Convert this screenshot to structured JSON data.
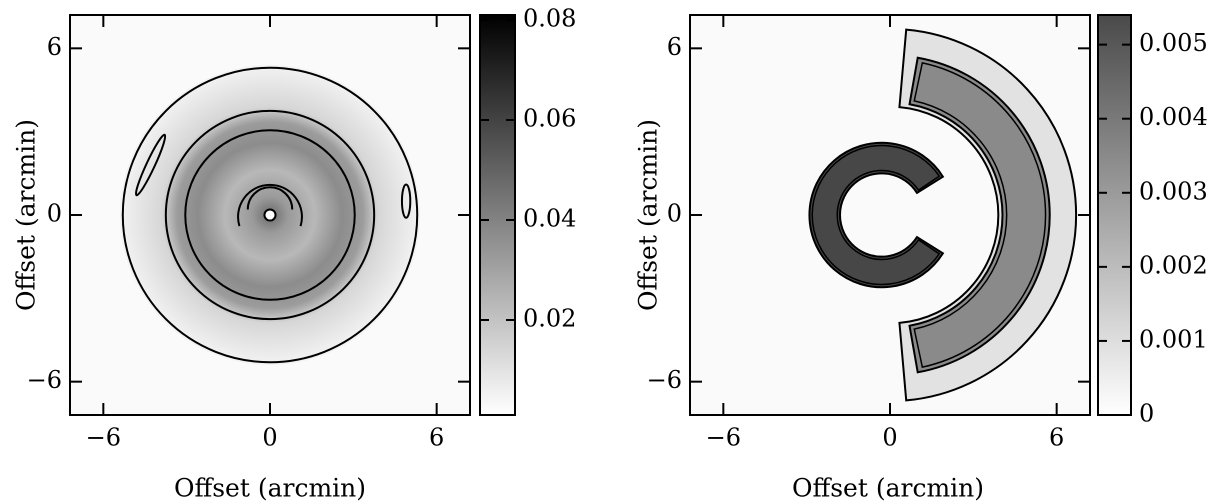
{
  "chart_data": [
    {
      "type": "heatmap",
      "xlabel": "Offset (arcmin)",
      "ylabel": "Offset (arcmin)",
      "xlim": [
        -7.2,
        7.2
      ],
      "ylim": [
        -7.2,
        7.2
      ],
      "xticks": [
        {
          "value": -6,
          "label": "−6"
        },
        0,
        6
      ],
      "yticks": [
        {
          "value": -6,
          "label": "−6"
        },
        0,
        6
      ],
      "colorbar": {
        "lim": [
          0.001,
          0.081
        ],
        "ticks": [
          0.02,
          0.04,
          0.06,
          0.08
        ],
        "colors": [
          "#ffffff",
          "#000000"
        ]
      }
    },
    {
      "type": "heatmap",
      "xlabel": "Offset (arcmin)",
      "ylabel": "Offset (arcmin)",
      "xlim": [
        -7.2,
        7.2
      ],
      "ylim": [
        -7.2,
        7.2
      ],
      "xticks": [
        {
          "value": -6,
          "label": "−6"
        },
        0,
        6
      ],
      "yticks": [
        {
          "value": -6,
          "label": "−6"
        },
        0,
        6
      ],
      "colorbar": {
        "lim": [
          0,
          0.0054
        ],
        "ticks": [
          0,
          0.001,
          0.002,
          0.003,
          0.004,
          0.005
        ],
        "colors": [
          "#ffffff",
          "#4a4a4a"
        ]
      }
    }
  ]
}
